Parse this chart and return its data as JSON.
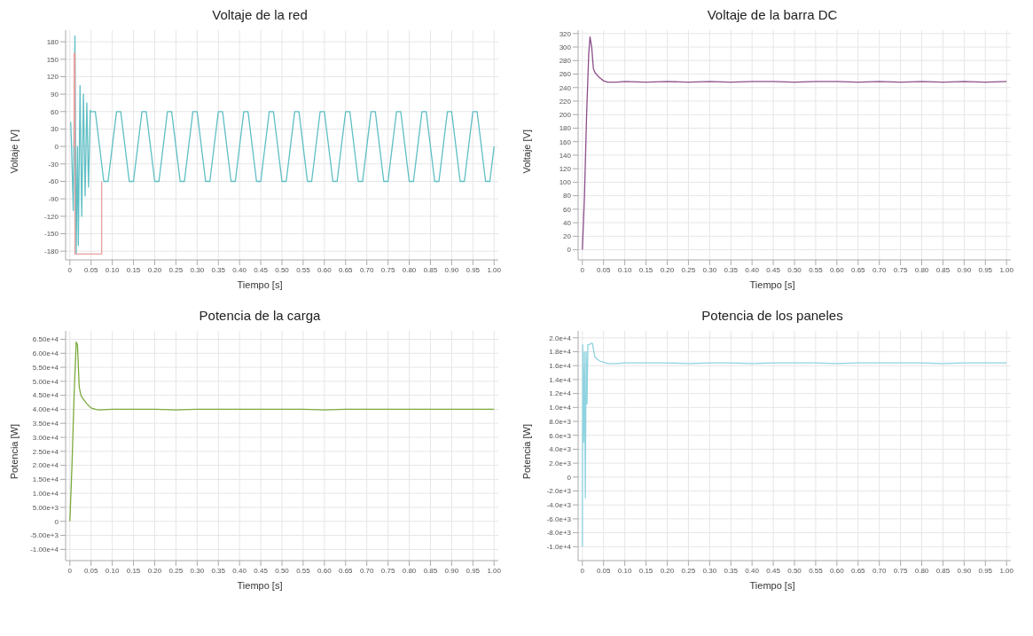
{
  "chart_data": [
    {
      "type": "line",
      "title": "Voltaje de la red",
      "xlabel": "Tiempo [s]",
      "ylabel": "Voltaje [V]",
      "grid": true,
      "marker": "none",
      "line_style": "solid",
      "xlim": [
        -0.01,
        1.01
      ],
      "ylim": [
        -195,
        200
      ],
      "xticks": [
        {
          "value": 0,
          "label": "0"
        },
        {
          "value": 0.05,
          "label": "0.05"
        },
        {
          "value": 0.1,
          "label": "0.10"
        },
        {
          "value": 0.15,
          "label": "0.15"
        },
        {
          "value": 0.2,
          "label": "0.20"
        },
        {
          "value": 0.25,
          "label": "0.25"
        },
        {
          "value": 0.3,
          "label": "0.30"
        },
        {
          "value": 0.35,
          "label": "0.35"
        },
        {
          "value": 0.4,
          "label": "0.40"
        },
        {
          "value": 0.45,
          "label": "0.45"
        },
        {
          "value": 0.5,
          "label": "0.50"
        },
        {
          "value": 0.55,
          "label": "0.55"
        },
        {
          "value": 0.6,
          "label": "0.60"
        },
        {
          "value": 0.65,
          "label": "0.65"
        },
        {
          "value": 0.7,
          "label": "0.70"
        },
        {
          "value": 0.75,
          "label": "0.75"
        },
        {
          "value": 0.8,
          "label": "0.80"
        },
        {
          "value": 0.85,
          "label": "0.85"
        },
        {
          "value": 0.9,
          "label": "0.90"
        },
        {
          "value": 0.95,
          "label": "0.95"
        },
        {
          "value": 1,
          "label": "1.00"
        }
      ],
      "yticks": [
        -180,
        -150,
        -120,
        -90,
        -60,
        -30,
        0,
        30,
        60,
        90,
        120,
        150,
        180
      ],
      "series": [
        {
          "color": "#5fbfc4",
          "x": [
            0.002,
            0.004,
            0.008,
            0.012,
            0.015,
            0.018,
            0.02,
            0.024,
            0.028,
            0.032,
            0.036,
            0.04,
            0.044,
            0.048,
            0.05,
            0.06,
            0.07,
            0.08,
            0.09,
            0.1,
            0.11,
            0.12,
            0.13,
            0.14,
            0.15,
            0.16,
            0.17,
            0.18,
            0.19,
            0.2,
            0.21,
            0.22,
            0.23,
            0.24,
            0.25,
            0.26,
            0.27,
            0.28,
            0.29,
            0.3,
            0.31,
            0.32,
            0.33,
            0.34,
            0.35,
            0.36,
            0.37,
            0.38,
            0.39,
            0.4,
            0.41,
            0.42,
            0.43,
            0.44,
            0.45,
            0.46,
            0.47,
            0.48,
            0.49,
            0.5,
            0.51,
            0.52,
            0.53,
            0.54,
            0.55,
            0.56,
            0.57,
            0.58,
            0.59,
            0.6,
            0.61,
            0.62,
            0.63,
            0.64,
            0.65,
            0.66,
            0.67,
            0.68,
            0.69,
            0.7,
            0.71,
            0.72,
            0.73,
            0.74,
            0.75,
            0.76,
            0.77,
            0.78,
            0.79,
            0.8,
            0.81,
            0.82,
            0.83,
            0.84,
            0.85,
            0.86,
            0.87,
            0.88,
            0.89,
            0.9,
            0.91,
            0.92,
            0.93,
            0.94,
            0.95,
            0.96,
            0.97,
            0.98,
            0.99,
            1
          ],
          "values": [
            42,
            0,
            -110,
            190,
            -185,
            0,
            -170,
            105,
            -120,
            90,
            -85,
            75,
            -70,
            62,
            60,
            60,
            0,
            -60,
            -60,
            0,
            60,
            60,
            0,
            -60,
            -60,
            0,
            60,
            60,
            0,
            -60,
            -60,
            0,
            60,
            60,
            0,
            -60,
            -60,
            0,
            60,
            60,
            0,
            -60,
            -60,
            0,
            60,
            60,
            0,
            -60,
            -60,
            0,
            60,
            60,
            0,
            -60,
            -60,
            0,
            60,
            60,
            0,
            -60,
            -60,
            0,
            60,
            60,
            0,
            -60,
            -60,
            0,
            60,
            60,
            0,
            -60,
            -60,
            0,
            60,
            60,
            0,
            -60,
            -60,
            0,
            60,
            60,
            0,
            -60,
            -60,
            0,
            60,
            60,
            0,
            -60,
            -60,
            0,
            60,
            60,
            0,
            -60,
            -60,
            0,
            60,
            60,
            0,
            -60,
            -60,
            0,
            60,
            60,
            0,
            -60,
            -60,
            0
          ]
        },
        {
          "color": "#e8a0a0",
          "x": [
            0.008,
            0.01,
            0.01,
            0.012,
            0.012,
            0.075,
            0.075
          ],
          "values": [
            0,
            0,
            160,
            160,
            -185,
            -185,
            -60
          ]
        }
      ]
    },
    {
      "type": "line",
      "title": "Voltaje de la barra DC",
      "xlabel": "Tiempo [s]",
      "ylabel": "Voltaje [V]",
      "grid": true,
      "marker": "none",
      "line_style": "solid",
      "xlim": [
        -0.01,
        1.01
      ],
      "ylim": [
        -15,
        325
      ],
      "xticks": [
        {
          "value": 0,
          "label": "0"
        },
        {
          "value": 0.05,
          "label": "0.05"
        },
        {
          "value": 0.1,
          "label": "0.10"
        },
        {
          "value": 0.15,
          "label": "0.15"
        },
        {
          "value": 0.2,
          "label": "0.20"
        },
        {
          "value": 0.25,
          "label": "0.25"
        },
        {
          "value": 0.3,
          "label": "0.30"
        },
        {
          "value": 0.35,
          "label": "0.35"
        },
        {
          "value": 0.4,
          "label": "0.40"
        },
        {
          "value": 0.45,
          "label": "0.45"
        },
        {
          "value": 0.5,
          "label": "0.50"
        },
        {
          "value": 0.55,
          "label": "0.55"
        },
        {
          "value": 0.6,
          "label": "0.60"
        },
        {
          "value": 0.65,
          "label": "0.65"
        },
        {
          "value": 0.7,
          "label": "0.70"
        },
        {
          "value": 0.75,
          "label": "0.75"
        },
        {
          "value": 0.8,
          "label": "0.80"
        },
        {
          "value": 0.85,
          "label": "0.85"
        },
        {
          "value": 0.9,
          "label": "0.90"
        },
        {
          "value": 0.95,
          "label": "0.95"
        },
        {
          "value": 1,
          "label": "1.00"
        }
      ],
      "yticks": [
        0,
        20,
        40,
        60,
        80,
        100,
        120,
        140,
        160,
        180,
        200,
        220,
        240,
        260,
        280,
        300,
        320
      ],
      "series": [
        {
          "color": "#8b4f8b",
          "x": [
            0,
            0.005,
            0.01,
            0.015,
            0.018,
            0.022,
            0.026,
            0.03,
            0.04,
            0.05,
            0.06,
            0.08,
            0.1,
            0.15,
            0.2,
            0.25,
            0.3,
            0.35,
            0.4,
            0.45,
            0.5,
            0.55,
            0.6,
            0.65,
            0.7,
            0.75,
            0.8,
            0.85,
            0.9,
            0.95,
            1
          ],
          "values": [
            0,
            80,
            200,
            290,
            315,
            300,
            268,
            262,
            255,
            250,
            248,
            248,
            249,
            248,
            249,
            248,
            249,
            248,
            249,
            249,
            248,
            249,
            249,
            248,
            249,
            248,
            249,
            248,
            249,
            248,
            249
          ]
        }
      ]
    },
    {
      "type": "line",
      "title": "Potencia de la carga",
      "xlabel": "Tiempo [s]",
      "ylabel": "Potencia [W]",
      "grid": true,
      "marker": "none",
      "line_style": "solid",
      "xlim": [
        -0.01,
        1.01
      ],
      "ylim": [
        -14000,
        68000
      ],
      "xticks": [
        {
          "value": 0,
          "label": "0"
        },
        {
          "value": 0.05,
          "label": "0.05"
        },
        {
          "value": 0.1,
          "label": "0.10"
        },
        {
          "value": 0.15,
          "label": "0.15"
        },
        {
          "value": 0.2,
          "label": "0.20"
        },
        {
          "value": 0.25,
          "label": "0.25"
        },
        {
          "value": 0.3,
          "label": "0.30"
        },
        {
          "value": 0.35,
          "label": "0.35"
        },
        {
          "value": 0.4,
          "label": "0.40"
        },
        {
          "value": 0.45,
          "label": "0.45"
        },
        {
          "value": 0.5,
          "label": "0.50"
        },
        {
          "value": 0.55,
          "label": "0.55"
        },
        {
          "value": 0.6,
          "label": "0.60"
        },
        {
          "value": 0.65,
          "label": "0.65"
        },
        {
          "value": 0.7,
          "label": "0.70"
        },
        {
          "value": 0.75,
          "label": "0.75"
        },
        {
          "value": 0.8,
          "label": "0.80"
        },
        {
          "value": 0.85,
          "label": "0.85"
        },
        {
          "value": 0.9,
          "label": "0.90"
        },
        {
          "value": 0.95,
          "label": "0.95"
        },
        {
          "value": 1,
          "label": "1.00"
        }
      ],
      "yticks": [
        {
          "value": -10000,
          "label": "-1.00e+4"
        },
        {
          "value": -5000,
          "label": "-5.00e+3"
        },
        {
          "value": 0,
          "label": "0"
        },
        {
          "value": 5000,
          "label": "5.00e+3"
        },
        {
          "value": 10000,
          "label": "1.00e+4"
        },
        {
          "value": 15000,
          "label": "1.50e+4"
        },
        {
          "value": 20000,
          "label": "2.00e+4"
        },
        {
          "value": 25000,
          "label": "2.50e+4"
        },
        {
          "value": 30000,
          "label": "3.00e+4"
        },
        {
          "value": 35000,
          "label": "3.50e+4"
        },
        {
          "value": 40000,
          "label": "4.00e+4"
        },
        {
          "value": 45000,
          "label": "4.50e+4"
        },
        {
          "value": 50000,
          "label": "5.00e+4"
        },
        {
          "value": 55000,
          "label": "5.50e+4"
        },
        {
          "value": 60000,
          "label": "6.00e+4"
        },
        {
          "value": 65000,
          "label": "6.50e+4"
        }
      ],
      "series": [
        {
          "color": "#7aaa3c",
          "x": [
            0,
            0.005,
            0.01,
            0.015,
            0.018,
            0.022,
            0.026,
            0.03,
            0.04,
            0.05,
            0.06,
            0.07,
            0.1,
            0.15,
            0.2,
            0.25,
            0.3,
            0.35,
            0.4,
            0.45,
            0.5,
            0.55,
            0.6,
            0.65,
            0.7,
            0.75,
            0.8,
            0.85,
            0.9,
            0.95,
            1
          ],
          "values": [
            0,
            20000,
            45000,
            64000,
            63000,
            48000,
            45000,
            44000,
            42000,
            40500,
            40000,
            39800,
            40000,
            40000,
            40000,
            39800,
            40000,
            40000,
            40000,
            40000,
            40000,
            40000,
            39800,
            40000,
            40000,
            40000,
            40000,
            40000,
            40000,
            40000,
            40000
          ]
        }
      ]
    },
    {
      "type": "line",
      "title": "Potencia de los paneles",
      "xlabel": "Tiempo [s]",
      "ylabel": "Potencia [W]",
      "grid": true,
      "marker": "none",
      "line_style": "solid",
      "xlim": [
        -0.01,
        1.01
      ],
      "ylim": [
        -12000,
        21000
      ],
      "xticks": [
        {
          "value": 0,
          "label": "0"
        },
        {
          "value": 0.05,
          "label": "0.05"
        },
        {
          "value": 0.1,
          "label": "0.10"
        },
        {
          "value": 0.15,
          "label": "0.15"
        },
        {
          "value": 0.2,
          "label": "0.20"
        },
        {
          "value": 0.25,
          "label": "0.25"
        },
        {
          "value": 0.3,
          "label": "0.30"
        },
        {
          "value": 0.35,
          "label": "0.35"
        },
        {
          "value": 0.4,
          "label": "0.40"
        },
        {
          "value": 0.45,
          "label": "0.45"
        },
        {
          "value": 0.5,
          "label": "0.50"
        },
        {
          "value": 0.55,
          "label": "0.55"
        },
        {
          "value": 0.6,
          "label": "0.60"
        },
        {
          "value": 0.65,
          "label": "0.65"
        },
        {
          "value": 0.7,
          "label": "0.70"
        },
        {
          "value": 0.75,
          "label": "0.75"
        },
        {
          "value": 0.8,
          "label": "0.80"
        },
        {
          "value": 0.85,
          "label": "0.85"
        },
        {
          "value": 0.9,
          "label": "0.90"
        },
        {
          "value": 0.95,
          "label": "0.95"
        },
        {
          "value": 1,
          "label": "1.00"
        }
      ],
      "yticks": [
        {
          "value": -10000,
          "label": "-1.0e+4"
        },
        {
          "value": -8000,
          "label": "-8.0e+3"
        },
        {
          "value": -6000,
          "label": "-6.0e+3"
        },
        {
          "value": -4000,
          "label": "-4.0e+3"
        },
        {
          "value": -2000,
          "label": "-2.0e+3"
        },
        {
          "value": 0,
          "label": "0"
        },
        {
          "value": 2000,
          "label": "2.0e+3"
        },
        {
          "value": 4000,
          "label": "4.0e+3"
        },
        {
          "value": 6000,
          "label": "6.0e+3"
        },
        {
          "value": 8000,
          "label": "8.0e+3"
        },
        {
          "value": 10000,
          "label": "1.0e+4"
        },
        {
          "value": 12000,
          "label": "1.2e+4"
        },
        {
          "value": 14000,
          "label": "1.4e+4"
        },
        {
          "value": 16000,
          "label": "1.6e+4"
        },
        {
          "value": 18000,
          "label": "1.8e+4"
        },
        {
          "value": 20000,
          "label": "2.0e+4"
        }
      ],
      "series": [
        {
          "color": "#8fd3e0",
          "x": [
            0,
            0.001,
            0.003,
            0.005,
            0.007,
            0.009,
            0.011,
            0.013,
            0.016,
            0.02,
            0.024,
            0.027,
            0.03,
            0.04,
            0.05,
            0.06,
            0.08,
            0.1,
            0.15,
            0.2,
            0.25,
            0.3,
            0.35,
            0.4,
            0.45,
            0.5,
            0.55,
            0.6,
            0.65,
            0.7,
            0.75,
            0.8,
            0.85,
            0.9,
            0.95,
            1
          ],
          "values": [
            -10000,
            19000,
            5000,
            18000,
            -3000,
            18000,
            10500,
            19000,
            19000,
            19200,
            19200,
            18000,
            17200,
            16700,
            16500,
            16300,
            16300,
            16400,
            16400,
            16400,
            16300,
            16400,
            16400,
            16300,
            16400,
            16400,
            16400,
            16300,
            16400,
            16400,
            16400,
            16400,
            16300,
            16400,
            16400,
            16400
          ]
        }
      ]
    }
  ]
}
